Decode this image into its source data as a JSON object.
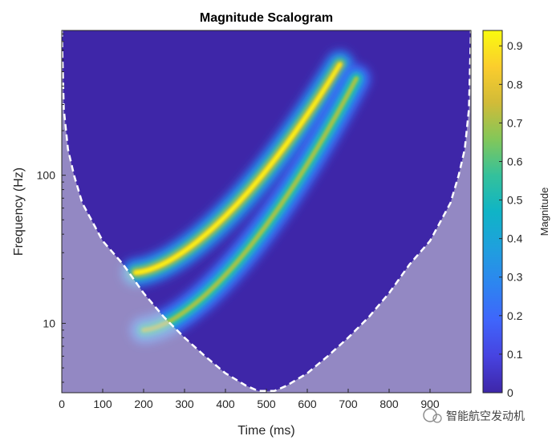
{
  "chart_data": {
    "type": "heatmap",
    "title": "Magnitude Scalogram",
    "xlabel": "Time (ms)",
    "ylabel": "Frequency (Hz)",
    "xlim": [
      0,
      1000
    ],
    "xticks": [
      0,
      100,
      200,
      300,
      400,
      500,
      600,
      700,
      800,
      900
    ],
    "y_scale": "log",
    "ylim": [
      3.4,
      950
    ],
    "yticks": [
      10,
      100
    ],
    "colorbar": {
      "label": "Magnitude",
      "range": [
        0,
        0.94
      ],
      "ticks": [
        0,
        0.1,
        0.2,
        0.3,
        0.4,
        0.5,
        0.6,
        0.7,
        0.8,
        0.9
      ],
      "colormap": "parula"
    },
    "series": [
      {
        "f_start_hz": 22,
        "f_end_hz": 560,
        "t_start_ms": 180,
        "t_end_ms": 680,
        "peak_magnitude": 0.94
      },
      {
        "f_start_hz": 9,
        "f_end_hz": 450,
        "t_start_ms": 200,
        "t_end_ms": 720,
        "peak_magnitude": 0.72
      }
    ],
    "cone_of_influence": [
      [
        0,
        950
      ],
      [
        5,
        280
      ],
      [
        15,
        150
      ],
      [
        30,
        100
      ],
      [
        50,
        65
      ],
      [
        100,
        36
      ],
      [
        150,
        25
      ],
      [
        200,
        16
      ],
      [
        250,
        11
      ],
      [
        300,
        8
      ],
      [
        350,
        6
      ],
      [
        400,
        4.6
      ],
      [
        450,
        3.8
      ],
      [
        480,
        3.5
      ],
      [
        520,
        3.5
      ],
      [
        550,
        3.8
      ],
      [
        600,
        4.6
      ],
      [
        650,
        6
      ],
      [
        700,
        8
      ],
      [
        750,
        11
      ],
      [
        800,
        16
      ],
      [
        850,
        25
      ],
      [
        900,
        36
      ],
      [
        950,
        65
      ],
      [
        970,
        100
      ],
      [
        985,
        150
      ],
      [
        995,
        280
      ],
      [
        1000,
        950
      ]
    ],
    "colors": {
      "background": "#3e26a8",
      "coi_shade": "#d8d8d8",
      "coi_line": "#ffffff"
    }
  },
  "watermark": {
    "text": "智能航空发动机"
  }
}
